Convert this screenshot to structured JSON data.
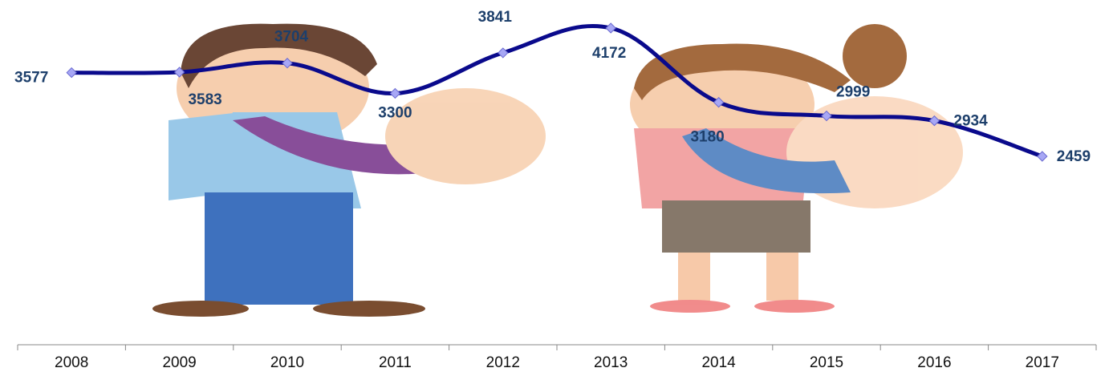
{
  "chart_data": {
    "type": "line",
    "categories": [
      "2008",
      "2009",
      "2010",
      "2011",
      "2012",
      "2013",
      "2014",
      "2015",
      "2016",
      "2017"
    ],
    "series": [
      {
        "color": "#0a0a8c",
        "values": [
          3577,
          3583,
          3704,
          3300,
          3841,
          4172,
          3180,
          2999,
          2934,
          2459
        ]
      }
    ]
  }
}
